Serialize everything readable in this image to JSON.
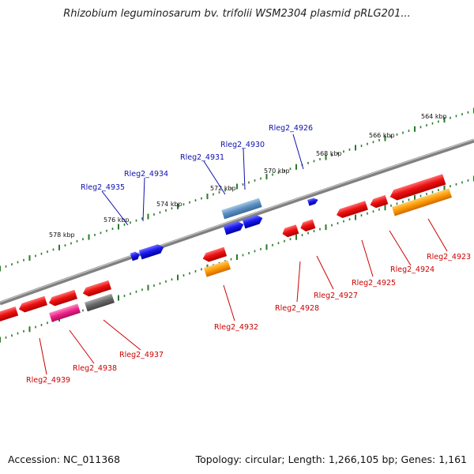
{
  "title": "Rhizobium leguminosarum bv. trifolii WSM2304 plasmid pRLG201...",
  "footer": {
    "accession": "Accession: NC_011368",
    "summary": "Topology: circular; Length: 1,266,105 bp; Genes: 1,161"
  },
  "colors": {
    "backbone": "#808080",
    "tick": "#2a7a2a",
    "top_label": "#1010b0",
    "bottom_label": "#cc0000",
    "cds_red": "#ee1111",
    "cds_blue": "#1a1aee",
    "cds_steelblue": "#5a8ec0",
    "orange": "#ff9900",
    "pink": "#ee2288",
    "grey": "#666666"
  },
  "chart_data": {
    "type": "genome-map",
    "kbp_labels": [
      "564 kbp",
      "566 kbp",
      "568 kbp",
      "570 kbp",
      "572 kbp",
      "574 kbp",
      "576 kbp",
      "578 kbp"
    ],
    "top_labels": [
      "Rleg2_4926",
      "Rleg2_4930",
      "Rleg2_4931",
      "Rleg2_4934",
      "Rleg2_4935"
    ],
    "bottom_labels": [
      "Rleg2_4923",
      "Rleg2_4924",
      "Rleg2_4925",
      "Rleg2_4927",
      "Rleg2_4928",
      "Rleg2_4932",
      "Rleg2_4937",
      "Rleg2_4938",
      "Rleg2_4939"
    ]
  }
}
